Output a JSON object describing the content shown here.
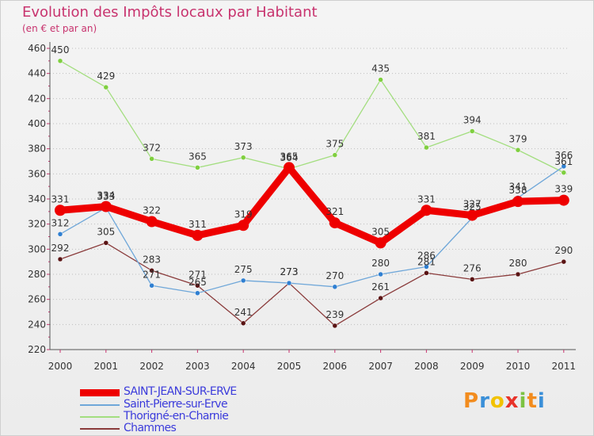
{
  "chart_data": {
    "type": "line",
    "title": "Evolution des Impôts locaux par Habitant",
    "subtitle": "(en € et par an)",
    "x": [
      "2000",
      "2001",
      "2002",
      "2003",
      "2004",
      "2005",
      "2006",
      "2007",
      "2008",
      "2009",
      "2010",
      "2011"
    ],
    "ylim": [
      220,
      460
    ],
    "yticks": [
      220,
      240,
      260,
      280,
      300,
      320,
      340,
      360,
      380,
      400,
      420,
      440,
      460
    ],
    "grid": "horizontal-dotted",
    "legend_position": "bottom-left",
    "series": [
      {
        "name": "SAINT-JEAN-SUR-ERVE",
        "color": "#ee0000",
        "marker": "#ee0000",
        "values": [
          331,
          334,
          322,
          311,
          319,
          365,
          321,
          305,
          331,
          327,
          338,
          339
        ]
      },
      {
        "name": "Saint-Pierre-sur-Erve",
        "color": "#6fa7d9",
        "marker": "#2f7fd1",
        "values": [
          312,
          333,
          271,
          265,
          275,
          273,
          270,
          280,
          286,
          325,
          341,
          366
        ]
      },
      {
        "name": "Thorigné-en-Charnie",
        "color": "#a3de7f",
        "marker": "#7fcf3f",
        "values": [
          450,
          429,
          372,
          365,
          373,
          364,
          375,
          435,
          381,
          394,
          379,
          361
        ]
      },
      {
        "name": "Chammes",
        "color": "#8a3b3b",
        "marker": "#5a1414",
        "values": [
          292,
          305,
          283,
          271,
          241,
          273,
          239,
          261,
          281,
          276,
          280,
          290
        ]
      }
    ]
  },
  "logo": {
    "letters": [
      "P",
      "r",
      "o",
      "x",
      "i",
      "t",
      "i"
    ],
    "colors": [
      "#f28c1e",
      "#3a8fd8",
      "#f2c200",
      "#e8332a",
      "#7cc242",
      "#f28c1e",
      "#3a8fd8"
    ]
  }
}
